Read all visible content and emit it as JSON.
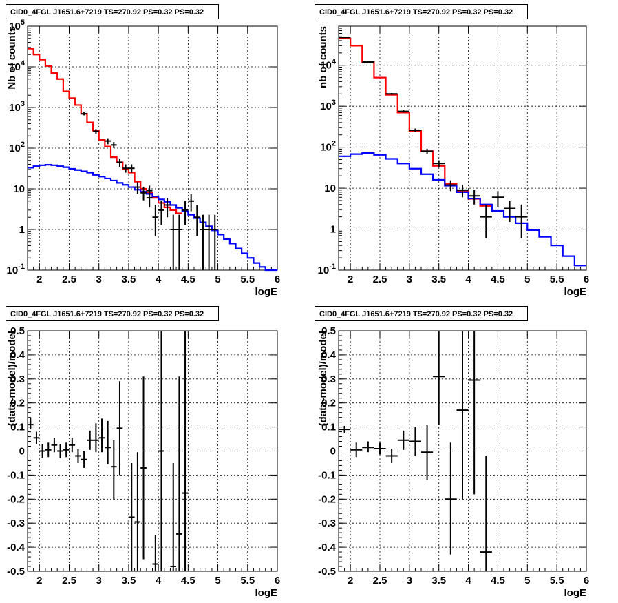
{
  "panels": [
    {
      "title": "CID0_4FGL J1651.6+7219 TS=270.92 PS=0.32 PS=0.32",
      "chart_data": {
        "type": "line",
        "xlabel": "logE",
        "ylabel": "Nb of counts",
        "xlim": [
          1.8,
          6.0
        ],
        "ylim": [
          0.1,
          100000
        ],
        "yscale": "log",
        "x_ticks": [
          "2",
          "2.5",
          "3",
          "3.5",
          "4",
          "4.5",
          "5",
          "5.5",
          "6"
        ],
        "y_ticks": [
          "10⁻¹",
          "1",
          "10",
          "10²",
          "10³",
          "10⁴",
          "10⁵"
        ],
        "grid": true,
        "bin_edges": [
          1.8,
          1.9,
          2.0,
          2.1,
          2.2,
          2.3,
          2.4,
          2.5,
          2.6,
          2.7,
          2.8,
          2.9,
          3.0,
          3.1,
          3.2,
          3.3,
          3.4,
          3.5,
          3.6,
          3.7,
          3.8,
          3.9,
          4.0,
          4.1,
          4.2,
          4.3,
          4.4,
          4.5,
          4.6,
          4.7,
          4.8,
          4.9,
          5.0,
          5.1,
          5.2,
          5.3,
          5.4,
          5.5,
          5.6,
          5.7,
          5.8,
          5.9,
          6.0
        ],
        "series": [
          {
            "color": "#ff0000",
            "kind": "step",
            "values": [
              28000,
              20000,
              15000,
              10500,
              7000,
              5000,
              2500,
              1700,
              1150,
              700,
              430,
              270,
              160,
              110,
              60,
              45,
              30,
              25,
              15,
              10,
              8,
              6,
              4.5,
              3.5,
              3.0,
              2.5
            ]
          },
          {
            "color": "#0000ff",
            "kind": "step",
            "values": [
              33,
              36,
              38,
              39,
              38,
              36,
              34,
              31,
              29,
              27,
              25,
              22,
              20,
              18,
              16,
              14,
              12.5,
              11,
              9.5,
              8.5,
              7.5,
              6.5,
              5.5,
              4.8,
              4.0,
              3.4,
              2.8,
              2.3,
              1.9,
              1.5,
              1.2,
              0.95,
              0.75,
              0.58,
              0.45,
              0.34,
              0.26,
              0.2,
              0.15,
              0.12,
              0.1,
              0.1
            ]
          },
          {
            "color": "#000000",
            "kind": "errorbar",
            "points": [
              {
                "x": 2.75,
                "y": 700,
                "ylo": 640,
                "yhi": 760,
                "xerr": 0.05
              },
              {
                "x": 2.95,
                "y": 260,
                "ylo": 225,
                "yhi": 295,
                "xerr": 0.05
              },
              {
                "x": 3.15,
                "y": 150,
                "ylo": 125,
                "yhi": 175,
                "xerr": 0.05
              },
              {
                "x": 3.25,
                "y": 120,
                "ylo": 100,
                "yhi": 142,
                "xerr": 0.05
              },
              {
                "x": 3.35,
                "y": 45,
                "ylo": 35,
                "yhi": 55,
                "xerr": 0.05
              },
              {
                "x": 3.45,
                "y": 32,
                "ylo": 25,
                "yhi": 40,
                "xerr": 0.05
              },
              {
                "x": 3.55,
                "y": 32,
                "ylo": 25,
                "yhi": 40,
                "xerr": 0.05
              },
              {
                "x": 3.65,
                "y": 11,
                "ylo": 7.5,
                "yhi": 14.5,
                "xerr": 0.05
              },
              {
                "x": 3.75,
                "y": 8,
                "ylo": 5.2,
                "yhi": 11,
                "xerr": 0.05
              },
              {
                "x": 3.85,
                "y": 6,
                "ylo": 3.5,
                "yhi": 9,
                "xerr": 0.05
              },
              {
                "x": 3.85,
                "y": 9,
                "ylo": 6,
                "yhi": 12,
                "xerr": 0.05
              },
              {
                "x": 3.95,
                "y": 2,
                "ylo": 0.7,
                "yhi": 4,
                "xerr": 0.05
              },
              {
                "x": 4.05,
                "y": 3,
                "ylo": 1.3,
                "yhi": 5,
                "xerr": 0.05
              },
              {
                "x": 4.15,
                "y": 4,
                "ylo": 2,
                "yhi": 6,
                "xerr": 0.05
              },
              {
                "x": 4.25,
                "y": 1,
                "ylo": 0.1,
                "yhi": 2.3,
                "xerr": 0.05
              },
              {
                "x": 4.35,
                "y": 1,
                "ylo": 0.1,
                "yhi": 2.3,
                "xerr": 0.05
              },
              {
                "x": 4.45,
                "y": 3,
                "ylo": 1.3,
                "yhi": 5,
                "xerr": 0.05
              },
              {
                "x": 4.55,
                "y": 5,
                "ylo": 2.8,
                "yhi": 7.5,
                "xerr": 0.05
              },
              {
                "x": 4.65,
                "y": 2,
                "ylo": 0.7,
                "yhi": 4,
                "xerr": 0.05
              },
              {
                "x": 4.75,
                "y": 1,
                "ylo": 0.1,
                "yhi": 2.3,
                "xerr": 0.05
              },
              {
                "x": 4.85,
                "y": 1,
                "ylo": 0.1,
                "yhi": 2.3,
                "xerr": 0.05
              },
              {
                "x": 4.95,
                "y": 1,
                "ylo": 0.1,
                "yhi": 2.3,
                "xerr": 0.05
              }
            ]
          }
        ]
      }
    },
    {
      "title": "CID0_4FGL J1651.6+7219 TS=270.92 PS=0.32 PS=0.32",
      "chart_data": {
        "type": "line",
        "xlabel": "logE",
        "ylabel": "nb of counts",
        "xlim": [
          1.8,
          6.0
        ],
        "ylim": [
          0.1,
          90000
        ],
        "yscale": "log",
        "x_ticks": [
          "2",
          "2.5",
          "3",
          "3.5",
          "4",
          "4.5",
          "5",
          "5.5",
          "6"
        ],
        "y_ticks": [
          "10⁻¹",
          "1",
          "10",
          "10²",
          "10³",
          "10⁴"
        ],
        "grid": true,
        "bin_edges": [
          1.8,
          2.0,
          2.2,
          2.4,
          2.6,
          2.8,
          3.0,
          3.2,
          3.4,
          3.6,
          3.8,
          4.0,
          4.2,
          4.4,
          4.6,
          4.8,
          5.0,
          5.2,
          5.4,
          5.6,
          5.8,
          6.0
        ],
        "series": [
          {
            "color": "#ff0000",
            "kind": "step",
            "values": [
              45000,
              30000,
              12000,
              5000,
              1900,
              700,
              250,
              80,
              35,
              13,
              8.5,
              5.5,
              3.7
            ]
          },
          {
            "color": "#0000ff",
            "kind": "step",
            "values": [
              60,
              68,
              72,
              65,
              52,
              40,
              30,
              22,
              16,
              11.5,
              8,
              5.6,
              4.0,
              2.8,
              2.0,
              1.4,
              0.95,
              0.65,
              0.4,
              0.22,
              0.13
            ]
          },
          {
            "color": "#000000",
            "kind": "errorbar",
            "points": [
              {
                "x": 1.9,
                "y": 48000,
                "ylo": 47000,
                "yhi": 49000,
                "xerr": 0.1
              },
              {
                "x": 2.3,
                "y": 12000,
                "ylo": 11600,
                "yhi": 12400,
                "xerr": 0.1
              },
              {
                "x": 2.7,
                "y": 2000,
                "ylo": 1900,
                "yhi": 2100,
                "xerr": 0.1
              },
              {
                "x": 2.9,
                "y": 750,
                "ylo": 700,
                "yhi": 800,
                "xerr": 0.1
              },
              {
                "x": 3.1,
                "y": 260,
                "ylo": 235,
                "yhi": 285,
                "xerr": 0.1
              },
              {
                "x": 3.3,
                "y": 80,
                "ylo": 68,
                "yhi": 92,
                "xerr": 0.1
              },
              {
                "x": 3.5,
                "y": 40,
                "ylo": 32,
                "yhi": 48,
                "xerr": 0.1
              },
              {
                "x": 3.7,
                "y": 12,
                "ylo": 8.5,
                "yhi": 15.5,
                "xerr": 0.1
              },
              {
                "x": 3.9,
                "y": 9,
                "ylo": 6,
                "yhi": 12,
                "xerr": 0.1
              },
              {
                "x": 4.1,
                "y": 6.5,
                "ylo": 4,
                "yhi": 9,
                "xerr": 0.1
              },
              {
                "x": 4.3,
                "y": 2,
                "ylo": 0.6,
                "yhi": 4,
                "xerr": 0.1
              },
              {
                "x": 4.5,
                "y": 6,
                "ylo": 3.5,
                "yhi": 8.5,
                "xerr": 0.1
              },
              {
                "x": 4.7,
                "y": 3.2,
                "ylo": 1.5,
                "yhi": 5,
                "xerr": 0.1
              },
              {
                "x": 4.9,
                "y": 2,
                "ylo": 0.6,
                "yhi": 4,
                "xerr": 0.1
              }
            ]
          }
        ]
      }
    },
    {
      "title": "CID0_4FGL J1651.6+7219 TS=270.92 PS=0.32 PS=0.32",
      "chart_data": {
        "type": "scatter",
        "xlabel": "logE",
        "ylabel": "(data-model)/model",
        "xlim": [
          1.8,
          6.0
        ],
        "ylim": [
          -0.5,
          0.5
        ],
        "yscale": "linear",
        "x_ticks": [
          "2",
          "2.5",
          "3",
          "3.5",
          "4",
          "4.5",
          "5",
          "5.5",
          "6"
        ],
        "y_ticks": [
          "-0.5",
          "-0.4",
          "-0.3",
          "-0.2",
          "-0.1",
          "0",
          "0.1",
          "0.2",
          "0.3",
          "0.4",
          "0.5"
        ],
        "grid": true,
        "series": [
          {
            "color": "#000000",
            "kind": "errorbar",
            "points": [
              {
                "x": 1.85,
                "y": 0.11,
                "ylo": 0.09,
                "yhi": 0.14,
                "xerr": 0.05
              },
              {
                "x": 1.95,
                "y": 0.055,
                "ylo": 0.03,
                "yhi": 0.08,
                "xerr": 0.05
              },
              {
                "x": 2.05,
                "y": 0.0,
                "ylo": -0.03,
                "yhi": 0.03,
                "xerr": 0.05
              },
              {
                "x": 2.15,
                "y": 0.005,
                "ylo": -0.025,
                "yhi": 0.035,
                "xerr": 0.05
              },
              {
                "x": 2.25,
                "y": 0.025,
                "ylo": -0.005,
                "yhi": 0.055,
                "xerr": 0.05
              },
              {
                "x": 2.35,
                "y": 0.0,
                "ylo": -0.03,
                "yhi": 0.03,
                "xerr": 0.05
              },
              {
                "x": 2.45,
                "y": 0.005,
                "ylo": -0.025,
                "yhi": 0.035,
                "xerr": 0.05
              },
              {
                "x": 2.55,
                "y": 0.025,
                "ylo": -0.005,
                "yhi": 0.055,
                "xerr": 0.05
              },
              {
                "x": 2.65,
                "y": -0.02,
                "ylo": -0.05,
                "yhi": 0.01,
                "xerr": 0.05
              },
              {
                "x": 2.75,
                "y": -0.035,
                "ylo": -0.07,
                "yhi": 0.0,
                "xerr": 0.05
              },
              {
                "x": 2.85,
                "y": 0.045,
                "ylo": 0.005,
                "yhi": 0.085,
                "xerr": 0.05
              },
              {
                "x": 2.95,
                "y": 0.045,
                "ylo": -0.005,
                "yhi": 0.115,
                "xerr": 0.05
              },
              {
                "x": 3.05,
                "y": 0.055,
                "ylo": -0.005,
                "yhi": 0.135,
                "xerr": 0.05
              },
              {
                "x": 3.15,
                "y": 0.015,
                "ylo": -0.055,
                "yhi": 0.125,
                "xerr": 0.05
              },
              {
                "x": 3.25,
                "y": -0.065,
                "ylo": -0.205,
                "yhi": 0.045,
                "xerr": 0.05
              },
              {
                "x": 3.35,
                "y": 0.095,
                "ylo": -0.1,
                "yhi": 0.29,
                "xerr": 0.05
              },
              {
                "x": 3.55,
                "y": -0.275,
                "ylo": -0.5,
                "yhi": -0.05,
                "xerr": 0.05
              },
              {
                "x": 3.65,
                "y": -0.295,
                "ylo": -0.5,
                "yhi": -0.005,
                "xerr": 0.05
              },
              {
                "x": 3.75,
                "y": -0.07,
                "ylo": -0.45,
                "yhi": 0.31,
                "xerr": 0.05
              },
              {
                "x": 3.95,
                "y": -0.47,
                "ylo": -0.5,
                "yhi": -0.35,
                "xerr": 0.05
              },
              {
                "x": 4.05,
                "y": 0.0,
                "ylo": -0.5,
                "yhi": 0.5,
                "xerr": 0.05
              },
              {
                "x": 4.25,
                "y": -0.48,
                "ylo": -0.5,
                "yhi": -0.05,
                "xerr": 0.05
              },
              {
                "x": 4.35,
                "y": -0.345,
                "ylo": -0.5,
                "yhi": 0.31,
                "xerr": 0.05
              },
              {
                "x": 4.45,
                "y": -0.175,
                "ylo": -0.5,
                "yhi": 0.5,
                "xerr": 0.05
              }
            ]
          }
        ]
      }
    },
    {
      "title": "CID0_4FGL J1651.6+7219 TS=270.92 PS=0.32 PS=0.32",
      "chart_data": {
        "type": "scatter",
        "xlabel": "logE",
        "ylabel": "(data-model)/model",
        "xlim": [
          1.8,
          6.0
        ],
        "ylim": [
          -0.5,
          0.5
        ],
        "yscale": "linear",
        "x_ticks": [
          "2",
          "2.5",
          "3",
          "3.5",
          "4",
          "4.5",
          "5",
          "5.5",
          "6"
        ],
        "y_ticks": [
          "-0.5",
          "-0.4",
          "-0.3",
          "-0.2",
          "-0.1",
          "0",
          "0.1",
          "0.2",
          "0.3",
          "0.4",
          "0.5"
        ],
        "grid": true,
        "series": [
          {
            "color": "#000000",
            "kind": "errorbar",
            "points": [
              {
                "x": 1.9,
                "y": 0.09,
                "ylo": 0.075,
                "yhi": 0.105,
                "xerr": 0.1
              },
              {
                "x": 2.1,
                "y": 0.005,
                "ylo": -0.025,
                "yhi": 0.035,
                "xerr": 0.1
              },
              {
                "x": 2.3,
                "y": 0.015,
                "ylo": -0.005,
                "yhi": 0.04,
                "xerr": 0.1
              },
              {
                "x": 2.5,
                "y": 0.01,
                "ylo": -0.015,
                "yhi": 0.035,
                "xerr": 0.1
              },
              {
                "x": 2.7,
                "y": -0.02,
                "ylo": -0.05,
                "yhi": 0.01,
                "xerr": 0.1
              },
              {
                "x": 2.9,
                "y": 0.045,
                "ylo": 0.005,
                "yhi": 0.085,
                "xerr": 0.1
              },
              {
                "x": 3.1,
                "y": 0.04,
                "ylo": -0.02,
                "yhi": 0.1,
                "xerr": 0.1
              },
              {
                "x": 3.3,
                "y": -0.005,
                "ylo": -0.12,
                "yhi": 0.11,
                "xerr": 0.1
              },
              {
                "x": 3.5,
                "y": 0.31,
                "ylo": 0.11,
                "yhi": 0.5,
                "xerr": 0.1
              },
              {
                "x": 3.7,
                "y": -0.2,
                "ylo": -0.43,
                "yhi": 0.035,
                "xerr": 0.1
              },
              {
                "x": 3.9,
                "y": 0.17,
                "ylo": -0.2,
                "yhi": 0.5,
                "xerr": 0.1
              },
              {
                "x": 4.1,
                "y": 0.295,
                "ylo": -0.18,
                "yhi": 0.5,
                "xerr": 0.1
              },
              {
                "x": 4.3,
                "y": -0.42,
                "ylo": -0.5,
                "yhi": -0.02,
                "xerr": 0.1
              }
            ]
          }
        ]
      }
    }
  ]
}
